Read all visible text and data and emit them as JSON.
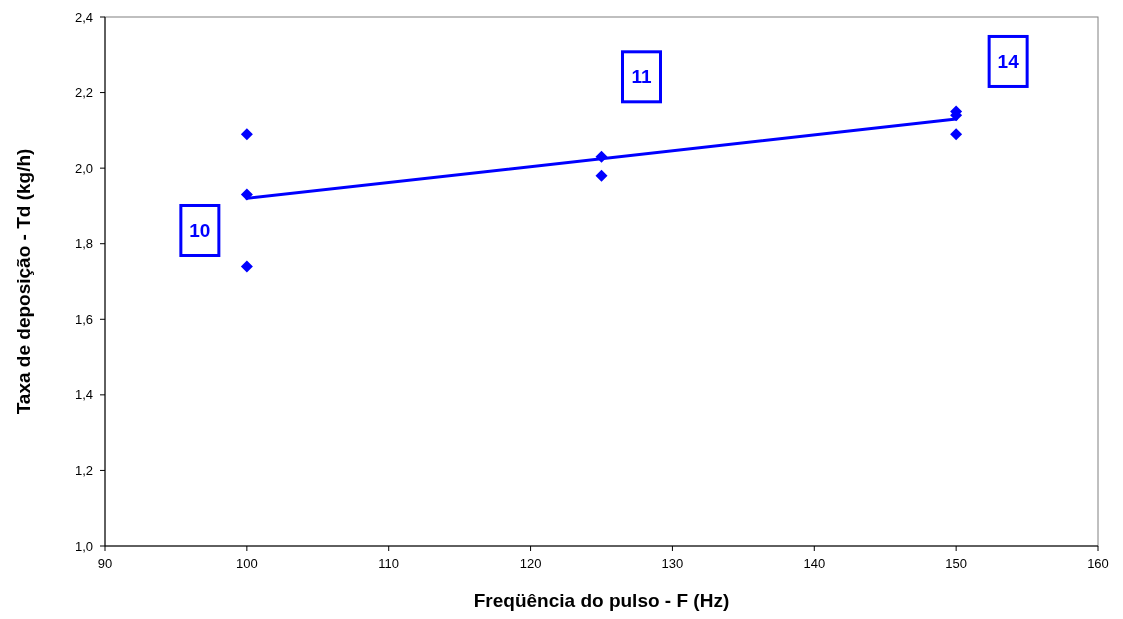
{
  "chart_data": {
    "type": "scatter",
    "xlabel": "Freqüência do pulso - F (Hz)",
    "ylabel": "Taxa de deposição - Td (kg/h)",
    "xlim": [
      90,
      160
    ],
    "xticks": [
      90,
      100,
      110,
      120,
      130,
      140,
      150,
      160
    ],
    "ylim": [
      1.0,
      2.4
    ],
    "yticks": [
      {
        "value": 1.0,
        "label": "1,0"
      },
      {
        "value": 1.2,
        "label": "1,2"
      },
      {
        "value": 1.4,
        "label": "1,4"
      },
      {
        "value": 1.6,
        "label": "1,6"
      },
      {
        "value": 1.8,
        "label": "1,8"
      },
      {
        "value": 2.0,
        "label": "2,0"
      },
      {
        "value": 2.2,
        "label": "2,2"
      },
      {
        "value": 2.4,
        "label": "2,4"
      }
    ],
    "grid": false,
    "series": [
      {
        "color": "#0000ff",
        "marker": "diamond",
        "x": [
          100,
          100,
          100,
          125,
          125,
          150,
          150,
          150
        ],
        "values": [
          2.09,
          1.93,
          1.74,
          2.03,
          1.98,
          2.15,
          2.14,
          2.09
        ]
      },
      {
        "type": "line",
        "color": "#0000ff",
        "marker": "none",
        "line_style": "solid",
        "x": [
          100,
          150
        ],
        "values": [
          1.92,
          2.13
        ]
      }
    ],
    "annotations": [
      "10",
      "11",
      "14"
    ]
  }
}
